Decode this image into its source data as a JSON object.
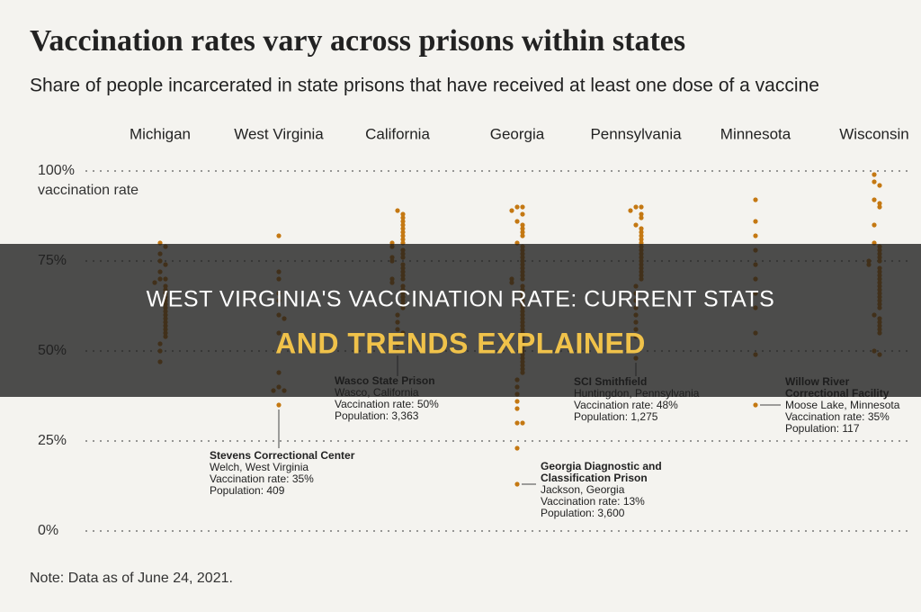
{
  "chart_data": {
    "type": "strip",
    "title": "Vaccination rates vary across prisons within states",
    "subtitle": "Share of people incarcerated in state prisons that have received at least one dose of a vaccine",
    "y_axis_label": "vaccination rate",
    "categories": [
      "Michigan",
      "West Virginia",
      "California",
      "Georgia",
      "Pennsylvania",
      "Minnesota",
      "Wisconsin"
    ],
    "color": "#c47812",
    "values": [
      [
        80,
        79,
        77,
        75,
        74,
        72,
        70,
        70,
        69,
        68,
        67,
        66,
        65,
        64,
        63,
        62,
        61,
        60,
        59,
        58,
        57,
        56,
        55,
        54,
        52,
        50,
        47
      ],
      [
        82,
        72,
        70,
        66,
        64,
        60,
        59,
        55,
        50,
        44,
        40,
        39,
        39,
        35
      ],
      [
        89,
        88,
        87,
        86,
        85,
        84,
        83,
        82,
        81,
        80,
        80,
        79,
        78,
        77,
        76,
        76,
        75,
        74,
        73,
        72,
        71,
        70,
        70,
        69,
        68,
        67,
        66,
        65,
        64,
        63,
        62,
        60,
        58,
        56,
        55,
        52,
        50
      ],
      [
        90,
        90,
        89,
        88,
        86,
        85,
        84,
        83,
        82,
        80,
        79,
        78,
        77,
        76,
        75,
        74,
        73,
        72,
        71,
        70,
        70,
        69,
        68,
        67,
        66,
        65,
        64,
        63,
        62,
        61,
        60,
        59,
        58,
        57,
        56,
        55,
        54,
        53,
        52,
        51,
        50,
        49,
        48,
        47,
        46,
        45,
        44,
        42,
        40,
        38,
        36,
        34,
        30,
        30,
        23,
        13
      ],
      [
        90,
        90,
        89,
        88,
        87,
        85,
        84,
        83,
        82,
        81,
        80,
        79,
        78,
        77,
        76,
        75,
        74,
        73,
        72,
        71,
        70,
        68,
        66,
        64,
        62,
        60,
        58,
        56,
        54,
        48
      ],
      [
        92,
        86,
        82,
        78,
        74,
        70,
        66,
        62,
        55,
        49,
        35
      ],
      [
        99,
        97,
        96,
        92,
        91,
        90,
        85,
        80,
        79,
        78,
        77,
        76,
        75,
        75,
        74,
        73,
        72,
        71,
        70,
        69,
        68,
        67,
        66,
        65,
        64,
        63,
        62,
        60,
        59,
        58,
        57,
        56,
        55,
        50,
        49
      ]
    ],
    "ylim": [
      0,
      100
    ],
    "yticks": [
      {
        "value": 0,
        "label": "0%"
      },
      {
        "value": 25,
        "label": "25%"
      },
      {
        "value": 50,
        "label": "50%"
      },
      {
        "value": 75,
        "label": "75%"
      },
      {
        "value": 100,
        "label": "100%"
      }
    ],
    "grid": true,
    "annotations": [
      {
        "category": 1,
        "value": 35,
        "name": [
          "Stevens Correctional Center"
        ],
        "details": [
          "Welch, West Virginia",
          "Vaccination rate: 35%",
          "Population: 409"
        ]
      },
      {
        "category": 2,
        "value": 50,
        "name": [
          "Wasco State Prison"
        ],
        "details": [
          "Wasco, California",
          "Vaccination rate: 50%",
          "Population: 3,363"
        ]
      },
      {
        "category": 3,
        "value": 13,
        "name": [
          "Georgia Diagnostic and",
          "Classification Prison"
        ],
        "details": [
          "Jackson, Georgia",
          "Vaccination rate: 13%",
          "Population: 3,600"
        ]
      },
      {
        "category": 4,
        "value": 48,
        "name": [
          "SCI Smithfield"
        ],
        "details": [
          "Huntingdon, Pennsylvania",
          "Vaccination rate: 48%",
          "Population: 1,275"
        ]
      },
      {
        "category": 5,
        "value": 35,
        "name": [
          "Willow River",
          "Correctional Facility"
        ],
        "details": [
          "Moose Lake, Minnesota",
          "Vaccination rate: 35%",
          "Population: 117"
        ]
      }
    ],
    "note": "Note: Data as of June 24, 2021."
  },
  "overlay": {
    "line1": "WEST VIRGINIA'S VACCINATION RATE: CURRENT STATS",
    "line2": "AND TRENDS EXPLAINED"
  }
}
